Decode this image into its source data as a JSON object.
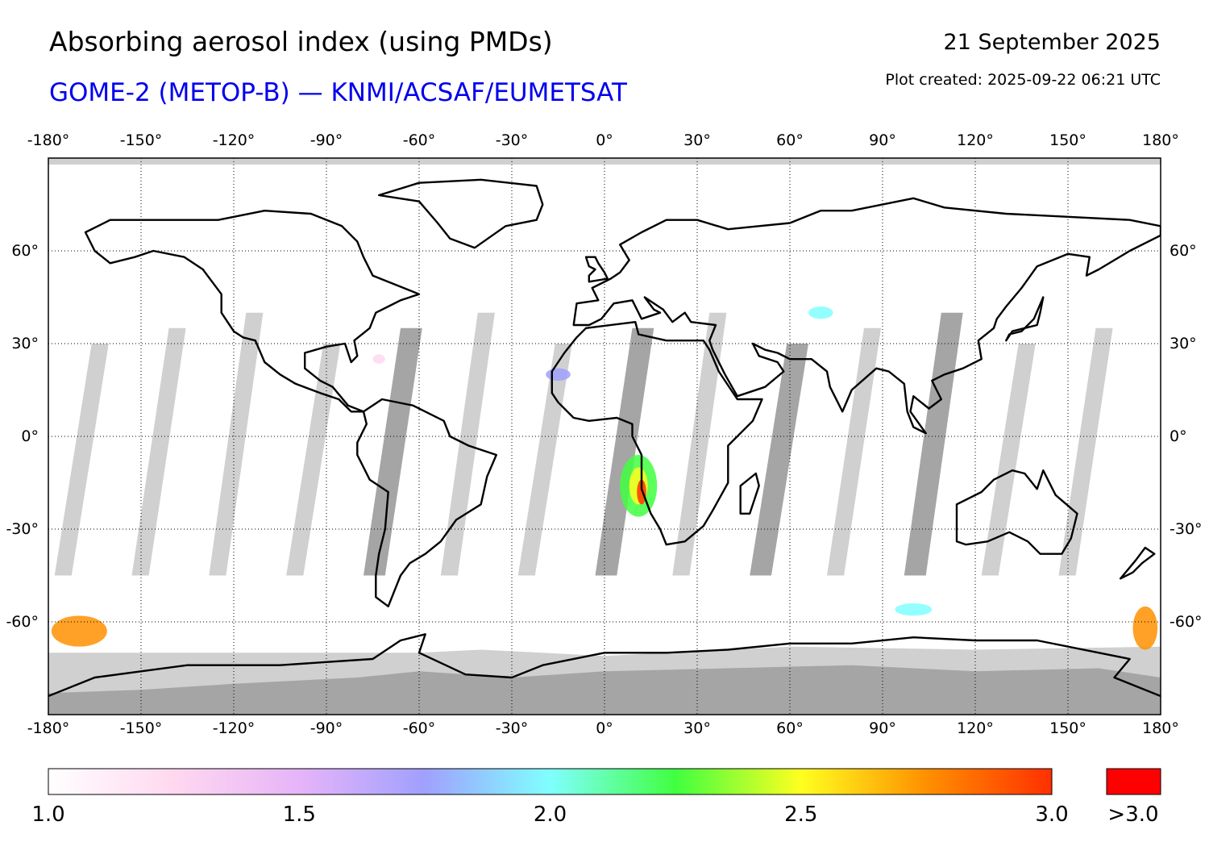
{
  "header": {
    "title": "Absorbing aerosol index (using PMDs)",
    "subtitle": "GOME-2 (METOP-B) — KNMI/ACSAF/EUMETSAT",
    "date": "21 September 2025",
    "plot_created": "Plot created: 2025-09-22 06:21 UTC"
  },
  "map": {
    "projection": "equirectangular",
    "lon_range": [
      -180,
      180
    ],
    "lat_range": [
      -90,
      90
    ],
    "gridlines": "dotted",
    "lon_ticks": [
      {
        "value": -180,
        "label": "-180°"
      },
      {
        "value": -150,
        "label": "-150°"
      },
      {
        "value": -120,
        "label": "-120°"
      },
      {
        "value": -90,
        "label": "-90°"
      },
      {
        "value": -60,
        "label": "-60°"
      },
      {
        "value": -30,
        "label": "-30°"
      },
      {
        "value": 0,
        "label": "0°"
      },
      {
        "value": 30,
        "label": "30°"
      },
      {
        "value": 60,
        "label": "60°"
      },
      {
        "value": 90,
        "label": "90°"
      },
      {
        "value": 120,
        "label": "120°"
      },
      {
        "value": 150,
        "label": "150°"
      },
      {
        "value": 180,
        "label": "180°"
      }
    ],
    "lat_ticks": [
      {
        "value": 60,
        "label": "60°"
      },
      {
        "value": 30,
        "label": "30°"
      },
      {
        "value": 0,
        "label": "0°"
      },
      {
        "value": -30,
        "label": "-30°"
      },
      {
        "value": -60,
        "label": "-60°"
      }
    ],
    "colors": {
      "no_data_gap": "#d0d0d0",
      "overlap_gap": "#a5a5a5",
      "coastline": "#000000",
      "ocean_land_background": "#ffffff"
    }
  },
  "colorbar": {
    "min": 1.0,
    "max": 3.0,
    "labels": [
      {
        "value": 1.0,
        "label": "1.0"
      },
      {
        "value": 1.5,
        "label": "1.5"
      },
      {
        "value": 2.0,
        "label": "2.0"
      },
      {
        "value": 2.5,
        "label": "2.5"
      },
      {
        "value": 3.0,
        "label": "3.0"
      }
    ],
    "overflow_label": ">3.0",
    "overflow_color": "#ff0000",
    "gradient": [
      "#ffffff",
      "#ffd8f0",
      "#e6b4f8",
      "#a0a0ff",
      "#80ffff",
      "#40ff40",
      "#ffff20",
      "#ff9000",
      "#ff3000"
    ]
  }
}
